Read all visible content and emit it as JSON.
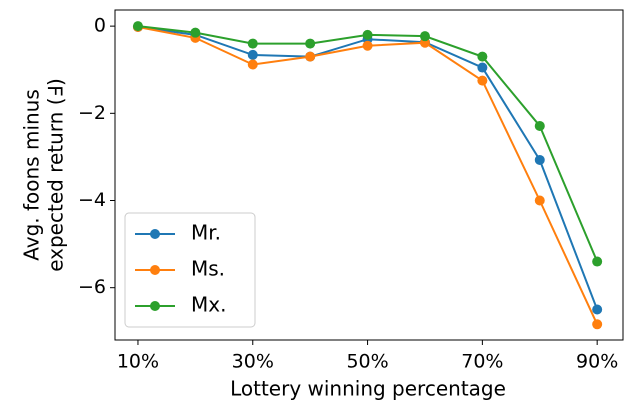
{
  "chart_data": {
    "type": "line",
    "x": [
      10,
      20,
      30,
      40,
      50,
      60,
      70,
      80,
      90
    ],
    "series": [
      {
        "name": "Mr.",
        "color": "#1f77b4",
        "values": [
          -0.02,
          -0.2,
          -0.66,
          -0.7,
          -0.3,
          -0.37,
          -0.95,
          -3.07,
          -6.5
        ]
      },
      {
        "name": "Ms.",
        "color": "#ff7f0e",
        "values": [
          -0.02,
          -0.27,
          -0.88,
          -0.7,
          -0.45,
          -0.38,
          -1.25,
          -4.0,
          -6.84
        ]
      },
      {
        "name": "Mx.",
        "color": "#2ca02c",
        "values": [
          0,
          -0.15,
          -0.4,
          -0.4,
          -0.2,
          -0.23,
          -0.7,
          -2.29,
          -5.4
        ]
      }
    ],
    "xlabel": "Lottery winning percentage",
    "ylabel": [
      "Avg. foons minus",
      "expected return (Ⅎ)"
    ],
    "xlim": [
      6,
      94.5
    ],
    "xticks": [
      {
        "value": 10,
        "label": "10%"
      },
      {
        "value": 30,
        "label": "30%"
      },
      {
        "value": 50,
        "label": "50%"
      },
      {
        "value": 70,
        "label": "70%"
      },
      {
        "value": 90,
        "label": "90%"
      }
    ],
    "ylim": [
      -7.2,
      0.37
    ],
    "yticks": [
      0,
      {
        "value": -2,
        "label": "−2"
      },
      {
        "value": -4,
        "label": "−4"
      },
      {
        "value": -6,
        "label": "−6"
      }
    ],
    "legend": "lower left"
  }
}
